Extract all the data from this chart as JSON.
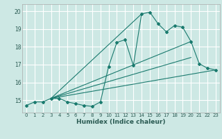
{
  "title": "",
  "xlabel": "Humidex (Indice chaleur)",
  "bg_color": "#cde8e4",
  "grid_color": "#ffffff",
  "line_color": "#1a7a6e",
  "xlim": [
    -0.5,
    23.5
  ],
  "ylim": [
    14.3,
    20.4
  ],
  "yticks": [
    15,
    16,
    17,
    18,
    19,
    20
  ],
  "xticks": [
    0,
    1,
    2,
    3,
    4,
    5,
    6,
    7,
    8,
    9,
    10,
    11,
    12,
    13,
    14,
    15,
    16,
    17,
    18,
    19,
    20,
    21,
    22,
    23
  ],
  "series": [
    {
      "x": [
        0,
        1,
        2,
        3,
        4,
        5,
        6,
        7,
        8,
        9,
        10,
        11,
        12,
        13,
        14,
        15,
        16,
        17,
        18,
        19,
        20,
        21,
        22,
        23
      ],
      "y": [
        14.7,
        14.9,
        14.9,
        15.1,
        15.1,
        14.9,
        14.8,
        14.7,
        14.65,
        14.9,
        16.9,
        18.25,
        18.4,
        16.95,
        19.85,
        19.95,
        19.3,
        18.85,
        19.2,
        19.1,
        18.3,
        17.05,
        16.8,
        16.7
      ],
      "marker": true
    },
    {
      "x": [
        3,
        23
      ],
      "y": [
        15.1,
        16.7
      ],
      "marker": false
    },
    {
      "x": [
        3,
        20
      ],
      "y": [
        15.1,
        18.3
      ],
      "marker": false
    },
    {
      "x": [
        3,
        20
      ],
      "y": [
        15.1,
        17.4
      ],
      "marker": false
    },
    {
      "x": [
        3,
        14
      ],
      "y": [
        15.1,
        19.85
      ],
      "marker": false
    }
  ]
}
